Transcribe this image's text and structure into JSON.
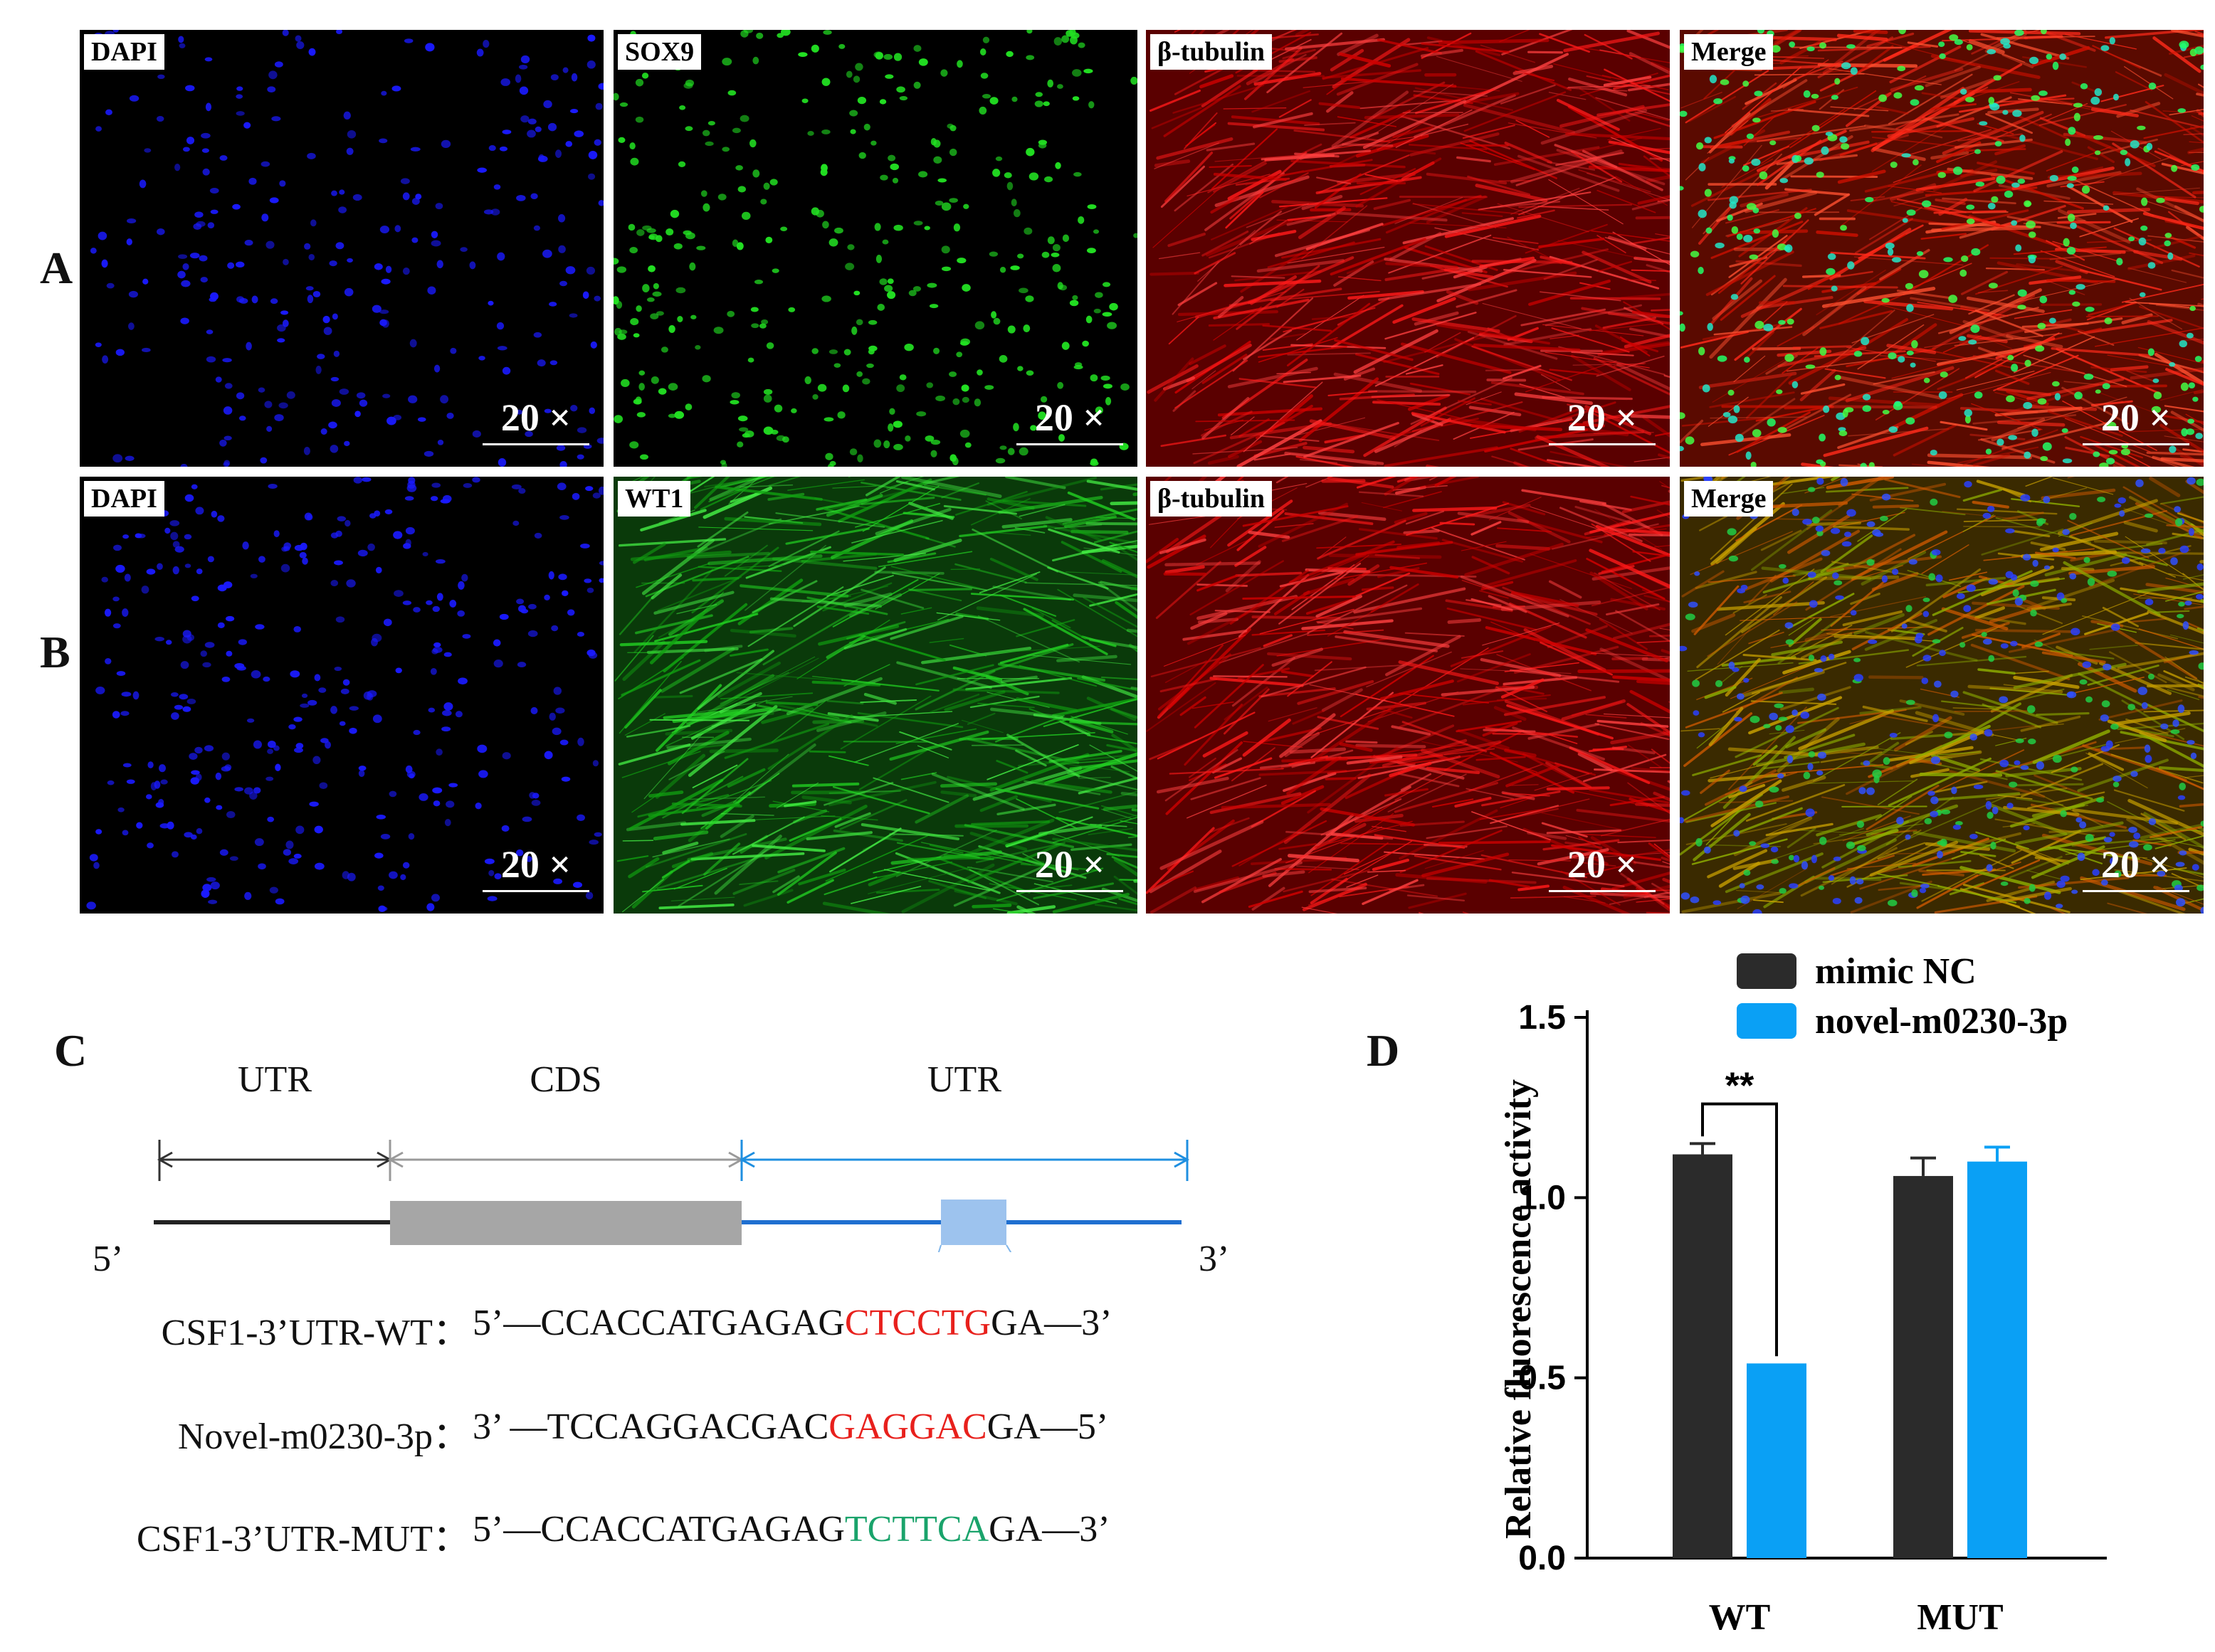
{
  "rows": [
    {
      "letter": "A",
      "panels": [
        {
          "label": "DAPI",
          "scale": "20 ×",
          "stain": "blue"
        },
        {
          "label": "SOX9",
          "scale": "20 ×",
          "stain": "green"
        },
        {
          "label": "β-tubulin",
          "scale": "20 ×",
          "stain": "red"
        },
        {
          "label": "Merge",
          "scale": "20 ×",
          "stain": "merge"
        }
      ]
    },
    {
      "letter": "B",
      "panels": [
        {
          "label": "DAPI",
          "scale": "20 ×",
          "stain": "blue"
        },
        {
          "label": "WT1",
          "scale": "20 ×",
          "stain": "green"
        },
        {
          "label": "β-tubulin",
          "scale": "20 ×",
          "stain": "red"
        },
        {
          "label": "Merge",
          "scale": "20 ×",
          "stain": "merge"
        }
      ]
    }
  ],
  "panel_c": {
    "letter": "C",
    "segments": [
      "UTR",
      "CDS",
      "UTR"
    ],
    "end5": "5’",
    "end3": "3’",
    "sequences": [
      {
        "label": "CSF1-3’UTR-WT：",
        "prefix": "5’—CCACCATGAGAG",
        "site": "CTCCTG",
        "suffix": "GA—3’",
        "site_color": "red"
      },
      {
        "label": "Novel-m0230-3p：",
        "prefix": "3’ —TCCAGGACGAC",
        "site": "GAGGAC",
        "suffix": "GA—5’",
        "site_color": "red"
      },
      {
        "label": "CSF1-3’UTR-MUT：",
        "prefix": "5’—CCACCATGAGAG",
        "site": "TCTTCA",
        "suffix": "GA—3’",
        "site_color": "green"
      }
    ],
    "colors": {
      "utr5": "#222222",
      "cds": "#a6a6a6",
      "utr3": "#1f6fd0",
      "site_box": "#9dc3ee",
      "pairing": "#e8201c"
    }
  },
  "panel_d": {
    "letter": "D",
    "legend": [
      "mimic NC",
      "novel-m0230-3p"
    ],
    "significance": "**"
  },
  "chart_data": {
    "type": "bar",
    "categories": [
      "WT",
      "MUT"
    ],
    "series": [
      {
        "name": "mimic NC",
        "values": [
          1.12,
          1.06
        ],
        "errors": [
          0.03,
          0.05
        ],
        "color": "#2b2b2b"
      },
      {
        "name": "novel-m0230-3p",
        "values": [
          0.54,
          1.1
        ],
        "errors": [
          0.0,
          0.04
        ],
        "color": "#0aa0f5"
      }
    ],
    "ylabel": "Relative fluorescence activity",
    "xlabel": "",
    "ylim": [
      0.0,
      1.5
    ],
    "yticks": [
      0.0,
      0.5,
      1.0,
      1.5
    ],
    "ytick_labels": [
      "0.0",
      "0.5",
      "1.0",
      "1.5"
    ],
    "legend_position": "top",
    "grid": false,
    "annotations": [
      {
        "text": "**",
        "between": [
          "WT mimic NC",
          "WT novel-m0230-3p"
        ]
      }
    ]
  }
}
